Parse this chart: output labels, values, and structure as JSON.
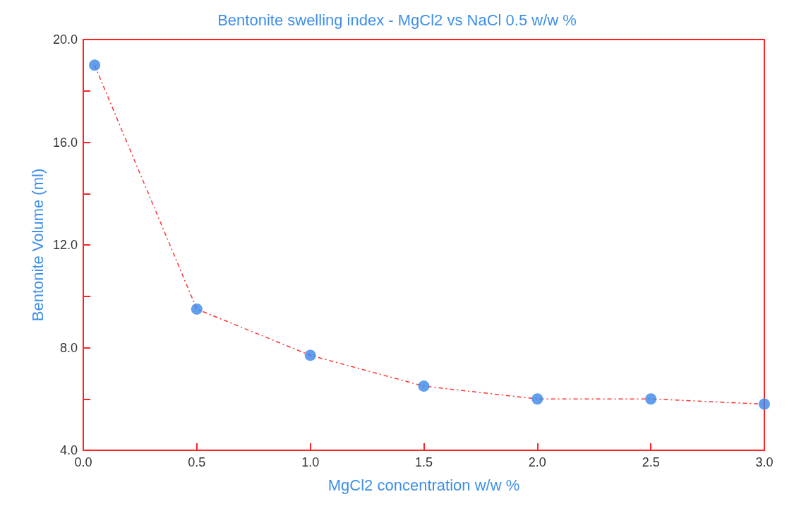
{
  "chart_data": {
    "type": "scatter",
    "title": "Bentonite swelling index - MgCl2 vs NaCl 0.5 w/w %",
    "xlabel": "MgCl2 concentration w/w %",
    "ylabel": "Bentonite Volume (ml)",
    "x": [
      0.05,
      0.5,
      1.0,
      1.5,
      2.0,
      2.5,
      3.0
    ],
    "series": [
      {
        "color": "#3a86e8",
        "marker": "circle",
        "values": [
          19.0,
          9.5,
          7.7,
          6.5,
          6.0,
          6.0,
          5.8
        ]
      },
      {
        "type": "line",
        "color": "#ff3333",
        "line_style": "dashed",
        "marker": "none",
        "x": [
          0.05,
          0.5,
          1.0,
          1.5,
          2.0,
          2.5,
          3.0
        ],
        "values": [
          19.0,
          9.5,
          7.7,
          6.5,
          6.0,
          6.0,
          5.8
        ]
      }
    ],
    "xlim": [
      0,
      3
    ],
    "xticks": [
      {
        "value": 0,
        "label": "0.0"
      },
      {
        "value": 0.5,
        "label": "0.5"
      },
      {
        "value": 1,
        "label": "1.0"
      },
      {
        "value": 1.5,
        "label": "1.5"
      },
      {
        "value": 2,
        "label": "2.0"
      },
      {
        "value": 2.5,
        "label": "2.5"
      },
      {
        "value": 3,
        "label": "3.0"
      }
    ],
    "ylim": [
      4,
      20
    ],
    "yticks": [
      {
        "value": 4,
        "label": "4.0"
      },
      {
        "value": 6,
        "label": null
      },
      {
        "value": 8,
        "label": "8.0"
      },
      {
        "value": 10,
        "label": null
      },
      {
        "value": 12,
        "label": "12.0"
      },
      {
        "value": 14,
        "label": null
      },
      {
        "value": 16,
        "label": "16.0"
      },
      {
        "value": 18,
        "label": null
      },
      {
        "value": 20,
        "label": "20.0"
      }
    ],
    "grid": false
  }
}
